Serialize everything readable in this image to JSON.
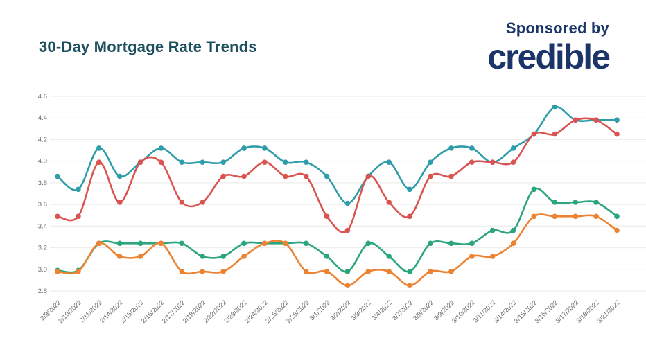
{
  "page": {
    "background": "#ffffff"
  },
  "header": {
    "title": "30-Day Mortgage Rate Trends",
    "title_color": "#1d4f5e",
    "sponsored_by": "Sponsored by",
    "sponsor_name": "credible",
    "sponsor_color": "#1b3568"
  },
  "chart_data": {
    "type": "line",
    "title": "30-Day Mortgage Rate Trends",
    "xlabel": "",
    "ylabel": "",
    "ylim": [
      2.8,
      4.6
    ],
    "y_tick_step": 0.2,
    "y_ticks": [
      "4.6",
      "4.4",
      "4.2",
      "4.0",
      "3.8",
      "3.6",
      "3.4",
      "3.2",
      "3.0",
      "2.8"
    ],
    "grid": true,
    "legend": "none",
    "x_labels_rotation_deg": -45,
    "axis_label_color": "#6f6f6f",
    "gridline_color": "#e9e9e9",
    "categories": [
      "2/9/2022",
      "2/10/2022",
      "2/11/2022",
      "2/14/2022",
      "2/15/2022",
      "2/16/2022",
      "2/17/2022",
      "2/18/2022",
      "2/22/2022",
      "2/23/2022",
      "2/24/2022",
      "2/25/2022",
      "2/28/2022",
      "3/1/2022",
      "3/2/2022",
      "3/3/2022",
      "3/4/2022",
      "3/7/2022",
      "3/8/2022",
      "3/9/2022",
      "3/10/2022",
      "3/11/2022",
      "3/14/2022",
      "3/15/2022",
      "3/16/2022",
      "3/17/2022",
      "3/18/2022",
      "3/21/2022"
    ],
    "series": [
      {
        "name": "teal-series",
        "color": "#2e9daa",
        "values": [
          3.86,
          3.74,
          4.12,
          3.86,
          3.99,
          4.12,
          3.99,
          3.99,
          3.99,
          4.12,
          4.12,
          3.99,
          3.99,
          3.86,
          3.61,
          3.86,
          3.99,
          3.74,
          3.99,
          4.12,
          4.12,
          3.99,
          4.12,
          4.25,
          4.5,
          4.38,
          4.38,
          4.38
        ]
      },
      {
        "name": "red-series",
        "color": "#d95450",
        "values": [
          3.49,
          3.49,
          3.99,
          3.62,
          3.99,
          3.99,
          3.62,
          3.62,
          3.86,
          3.86,
          3.99,
          3.86,
          3.86,
          3.49,
          3.36,
          3.86,
          3.62,
          3.49,
          3.86,
          3.86,
          3.99,
          3.99,
          3.99,
          4.25,
          4.25,
          4.38,
          4.38,
          4.25
        ]
      },
      {
        "name": "green-series",
        "color": "#2aa57d",
        "values": [
          2.99,
          2.99,
          3.24,
          3.24,
          3.24,
          3.24,
          3.24,
          3.12,
          3.12,
          3.24,
          3.24,
          3.24,
          3.24,
          3.12,
          2.98,
          3.24,
          3.12,
          2.98,
          3.24,
          3.24,
          3.24,
          3.36,
          3.36,
          3.74,
          3.62,
          3.62,
          3.62,
          3.49
        ]
      },
      {
        "name": "orange-series",
        "color": "#ec8333",
        "values": [
          2.98,
          2.98,
          3.24,
          3.12,
          3.12,
          3.24,
          2.98,
          2.98,
          2.98,
          3.12,
          3.24,
          3.24,
          2.98,
          2.98,
          2.85,
          2.98,
          2.98,
          2.85,
          2.98,
          2.98,
          3.12,
          3.12,
          3.24,
          3.49,
          3.49,
          3.49,
          3.49,
          3.36
        ]
      }
    ]
  }
}
